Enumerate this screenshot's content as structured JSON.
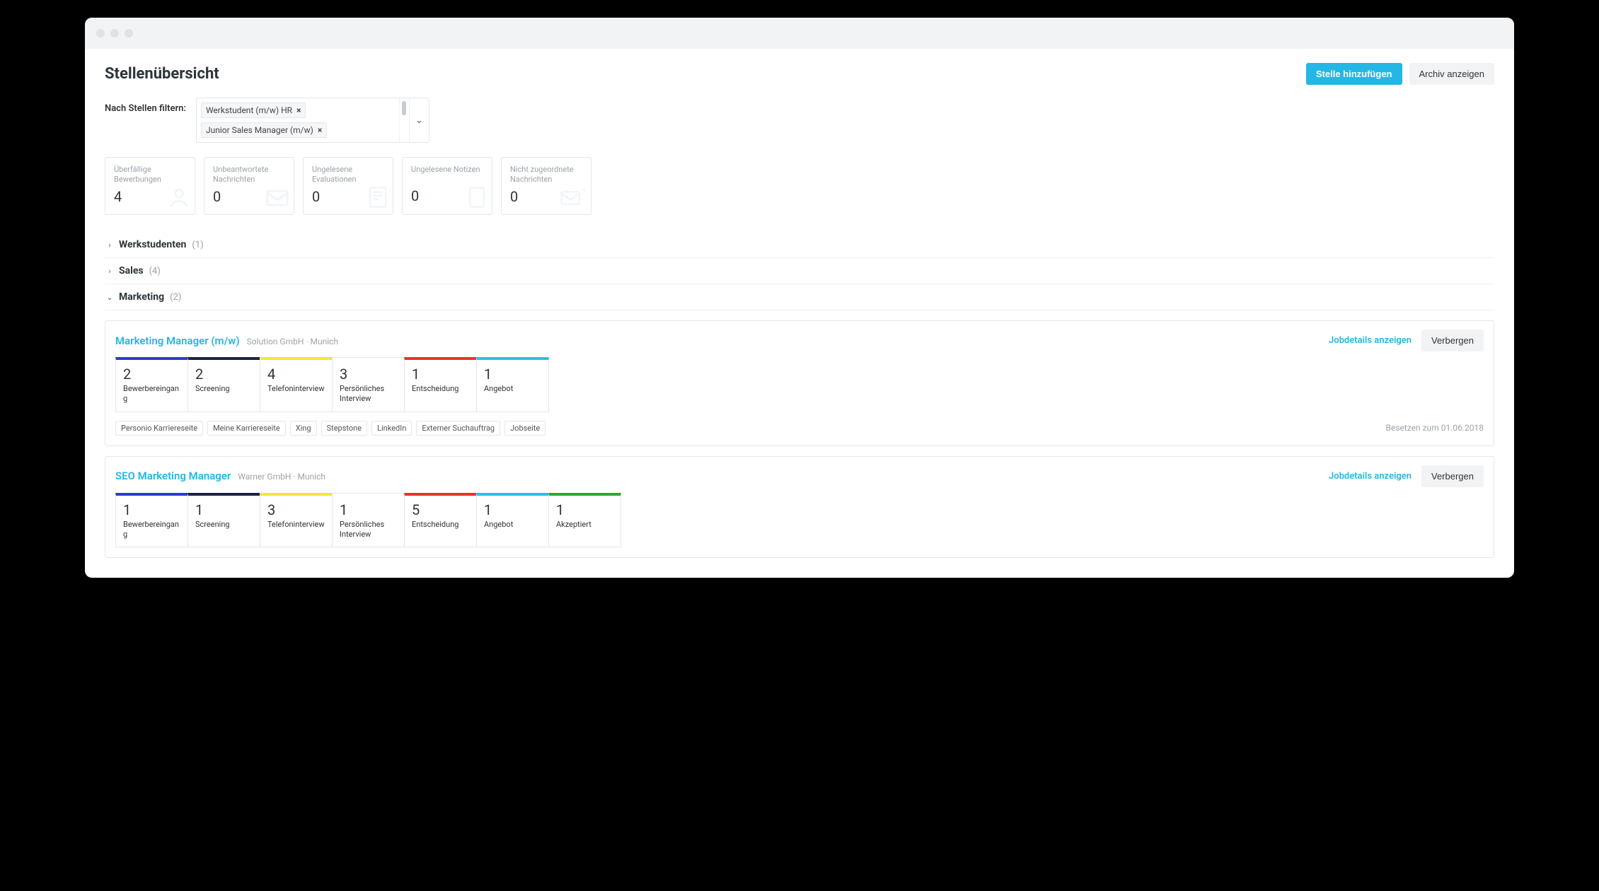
{
  "colors": {
    "primary": "#24b7e5",
    "text": "#2d3539",
    "muted": "#9aa3ab",
    "border": "#e4e6ea",
    "bg": "#ffffff",
    "titlebar": "#f1f3f5",
    "btn_secondary_bg": "#f2f3f5"
  },
  "page": {
    "title": "Stellenübersicht",
    "add_button": "Stelle hinzufügen",
    "archive_button": "Archiv anzeigen"
  },
  "filter": {
    "label": "Nach Stellen filtern:",
    "chips": [
      "Werkstudent (m/w) HR",
      "Junior Sales Manager (m/w)"
    ]
  },
  "stats": [
    {
      "label": "Überfällige Bewerbungen",
      "value": "4",
      "icon": "user"
    },
    {
      "label": "Unbeantwortete Nachrichten",
      "value": "0",
      "icon": "mail"
    },
    {
      "label": "Ungelesene Evaluationen",
      "value": "0",
      "icon": "list"
    },
    {
      "label": "Ungelesene Notizen",
      "value": "0",
      "icon": "note"
    },
    {
      "label": "Nicht zugeordnete Nachrichten",
      "value": "0",
      "icon": "mail-q"
    }
  ],
  "groups": [
    {
      "name": "Werkstudenten",
      "count": "(1)",
      "expanded": false
    },
    {
      "name": "Sales",
      "count": "(4)",
      "expanded": false
    },
    {
      "name": "Marketing",
      "count": "(2)",
      "expanded": true
    }
  ],
  "stage_colors": {
    "bewerbereingang": "#2a3ccc",
    "screening": "#1b2246",
    "telefoninterview": "#f4e638",
    "persoenliches": "#ffffff",
    "entscheidung": "#e53528",
    "angebot": "#29bfe9",
    "akzeptiert": "#2ea82e"
  },
  "jobs": [
    {
      "title": "Marketing Manager (m/w)",
      "company": "Solution GmbH · Munich",
      "details_link": "Jobdetails anzeigen",
      "hide_button": "Verbergen",
      "stages": [
        {
          "value": "2",
          "label": "Bewerbereingang",
          "color_key": "bewerbereingang"
        },
        {
          "value": "2",
          "label": "Screening",
          "color_key": "screening"
        },
        {
          "value": "4",
          "label": "Telefoninterview",
          "color_key": "telefoninterview"
        },
        {
          "value": "3",
          "label": "Persönliches Interview",
          "color_key": "persoenliches"
        },
        {
          "value": "1",
          "label": "Entscheidung",
          "color_key": "entscheidung"
        },
        {
          "value": "1",
          "label": "Angebot",
          "color_key": "angebot"
        }
      ],
      "tags": [
        "Personio Karriereseite",
        "Meine Karriereseite",
        "Xing",
        "Stepstone",
        "LinkedIn",
        "Externer Suchauftrag",
        "Jobseite"
      ],
      "due": "Besetzen zum 01.06.2018"
    },
    {
      "title": "SEO Marketing Manager",
      "company": "Warner GmbH · Munich",
      "details_link": "Jobdetails anzeigen",
      "hide_button": "Verbergen",
      "stages": [
        {
          "value": "1",
          "label": "Bewerbereingang",
          "color_key": "bewerbereingang"
        },
        {
          "value": "1",
          "label": "Screening",
          "color_key": "screening"
        },
        {
          "value": "3",
          "label": "Telefoninterview",
          "color_key": "telefoninterview"
        },
        {
          "value": "1",
          "label": "Persönliches Interview",
          "color_key": "persoenliches"
        },
        {
          "value": "5",
          "label": "Entscheidung",
          "color_key": "entscheidung"
        },
        {
          "value": "1",
          "label": "Angebot",
          "color_key": "angebot"
        },
        {
          "value": "1",
          "label": "Akzeptiert",
          "color_key": "akzeptiert"
        }
      ],
      "tags": [],
      "due": ""
    }
  ]
}
